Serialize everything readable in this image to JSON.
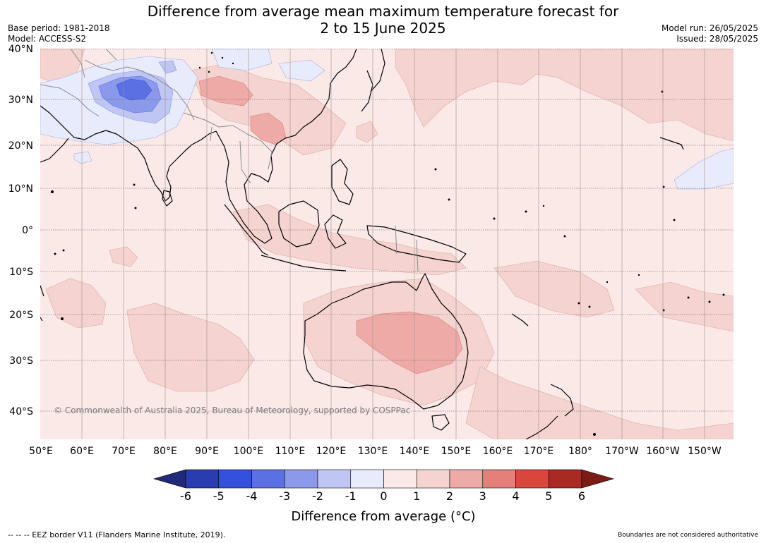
{
  "title_line1": "Difference from average mean maximum temperature forecast for",
  "title_line2": "2 to 15 June 2025",
  "base_period": "Base period: 1981-2018",
  "model": "Model: ACCESS-S2",
  "model_run": "Model run: 26/05/2025",
  "issued": "Issued: 28/05/2025",
  "copyright": "© Commonwealth of Australia 2025, Bureau of Meteorology, supported by COSPPac",
  "lat_labels": [
    "40°N",
    "30°N",
    "20°N",
    "10°N",
    "0°",
    "10°S",
    "20°S",
    "30°S",
    "40°S"
  ],
  "lon_labels": [
    "50°E",
    "60°E",
    "70°E",
    "80°E",
    "90°E",
    "100°E",
    "110°E",
    "120°E",
    "130°E",
    "140°E",
    "150°E",
    "160°E",
    "170°E",
    "180°",
    "170°W",
    "160°W",
    "150°W"
  ],
  "legend": {
    "title": "Difference from average (°C)",
    "tick_labels": [
      "-6",
      "-5",
      "-4",
      "-3",
      "-2",
      "-1",
      "0",
      "1",
      "2",
      "3",
      "4",
      "5",
      "6"
    ],
    "colors": [
      "#1f2a7a",
      "#2a3db0",
      "#3451dd",
      "#5a70e3",
      "#8a99ea",
      "#bfc6f3",
      "#e8ebfb",
      "#fbe9e7",
      "#f5d3d0",
      "#eeaaa6",
      "#e57f79",
      "#d9473c",
      "#a82a22",
      "#7a1c15"
    ]
  },
  "colors": {
    "land_outline": "#000000",
    "border": "#8c8c8c",
    "grid": "#555555",
    "base_fill": "#fbe9e7"
  },
  "footer_left": "--  --  -- EEZ border V11 (Flanders Marine Institute, 2019).",
  "footer_right": "Boundaries are not considered authoritative"
}
